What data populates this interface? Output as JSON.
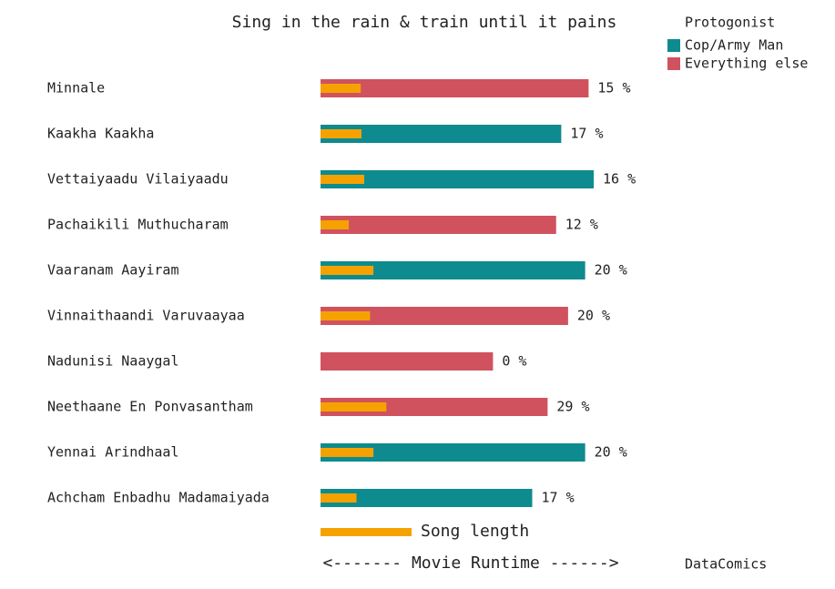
{
  "chart_data": {
    "type": "bar",
    "title": "Sing in the rain & train until it pains",
    "categories": [
      "Minnale",
      "Kaakha Kaakha",
      "Vettaiyaadu Vilaiyaadu",
      "Pachaikili Muthucharam",
      "Vaaranam Aayiram",
      "Vinnaithaandi Varuvaayaa",
      "Nadunisi Naaygal",
      "Neethaane En Ponvasantham",
      "Yennai Arindhaal",
      "Achcham Enbadhu Madamaiyada"
    ],
    "runtime": [
      157,
      141,
      160,
      138,
      155,
      145,
      101,
      133,
      155,
      124
    ],
    "values": [
      15,
      17,
      16,
      12,
      20,
      20,
      0,
      29,
      20,
      17
    ],
    "value_labels": [
      "15 %",
      "17 %",
      "16 %",
      "12 %",
      "20 %",
      "20 %",
      "0 %",
      "29 %",
      "20 %",
      "17 %"
    ],
    "group": [
      1,
      0,
      0,
      1,
      0,
      1,
      1,
      1,
      0,
      0
    ],
    "xlim": [
      0,
      160
    ],
    "song_color": "#f5a200",
    "song_label": "Song length",
    "xlabel": "<------- Movie Runtime ------>",
    "legend": {
      "title": "Protogonist",
      "entries": [
        {
          "name": "Cop/Army Man",
          "color": "#0e8b8e"
        },
        {
          "name": "Everything else",
          "color": "#d0525f"
        }
      ]
    },
    "source": "DataComics"
  }
}
